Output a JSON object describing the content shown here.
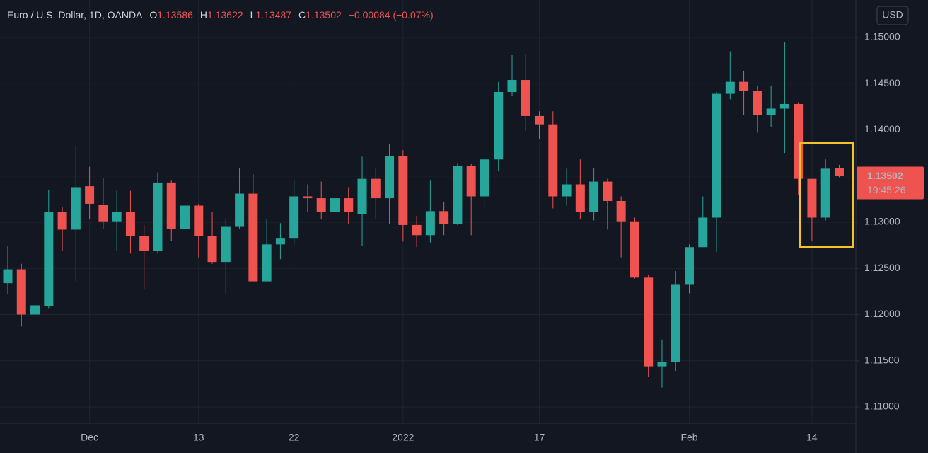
{
  "chart_data": {
    "type": "candlestick",
    "title": "Euro / U.S. Dollar, 1D, OANDA",
    "ohlc_labels": [
      "O",
      "H",
      "L",
      "C"
    ],
    "change_label": "−0.00084 (−0.07%)",
    "currency": "USD",
    "countdown": "19:45:26",
    "up_color": "#26a69a",
    "down_color": "#ef5350",
    "grid": true,
    "categories": [
      null,
      null,
      null,
      null,
      null,
      null,
      "Dec",
      null,
      null,
      null,
      null,
      null,
      null,
      null,
      "13",
      null,
      null,
      null,
      null,
      null,
      null,
      "22",
      null,
      null,
      null,
      null,
      null,
      null,
      null,
      "2022",
      null,
      null,
      null,
      null,
      null,
      null,
      null,
      null,
      null,
      "17",
      null,
      null,
      null,
      null,
      null,
      null,
      null,
      null,
      null,
      null,
      "Feb",
      null,
      null,
      null,
      null,
      null,
      null,
      null,
      null,
      "14",
      null,
      null
    ],
    "open": [
      1.1234,
      1.1249,
      1.12,
      1.1209,
      1.1311,
      1.1292,
      1.1339,
      1.1319,
      1.1301,
      1.1311,
      1.1285,
      1.1269,
      1.1343,
      1.1293,
      1.1318,
      1.1285,
      1.1257,
      1.1295,
      1.1331,
      1.1236,
      1.1276,
      1.1283,
      1.1328,
      1.1326,
      1.1311,
      1.1326,
      1.1309,
      1.1347,
      1.1326,
      1.1372,
      1.1297,
      1.1286,
      1.1312,
      1.1298,
      1.1361,
      1.1328,
      1.1368,
      1.1441,
      1.1454,
      1.1415,
      1.1406,
      1.1328,
      1.1341,
      1.1311,
      1.1344,
      1.1323,
      1.1301,
      1.124,
      1.1144,
      1.1149,
      1.1233,
      1.1273,
      1.1305,
      1.1439,
      1.1452,
      1.1442,
      1.1416,
      1.1423,
      1.1428,
      1.1347,
      1.1305,
      1.13586
    ],
    "high": [
      1.1274,
      1.1255,
      1.1212,
      1.1335,
      1.1316,
      1.1383,
      1.136,
      1.1348,
      1.1334,
      1.1334,
      1.1297,
      1.1354,
      1.1345,
      1.132,
      1.132,
      1.1311,
      1.1304,
      1.1359,
      1.1352,
      1.1303,
      1.1299,
      1.1345,
      1.1341,
      1.1344,
      1.1335,
      1.1338,
      1.1371,
      1.1358,
      1.1385,
      1.1378,
      1.1307,
      1.1345,
      1.1322,
      1.1364,
      1.1363,
      1.137,
      1.1452,
      1.1481,
      1.1482,
      1.142,
      1.142,
      1.1358,
      1.1368,
      1.1359,
      1.1347,
      1.1328,
      1.1305,
      1.1243,
      1.1173,
      1.1247,
      1.1276,
      1.1328,
      1.1441,
      1.1485,
      1.1464,
      1.1448,
      1.1448,
      1.1495,
      1.143,
      1.1347,
      1.1368,
      1.13622
    ],
    "low": [
      1.1222,
      1.1187,
      1.1198,
      1.1207,
      1.1269,
      1.1236,
      1.1303,
      1.1293,
      1.1269,
      1.1266,
      1.1228,
      1.1266,
      1.128,
      1.1266,
      1.1262,
      1.1255,
      1.1222,
      1.1293,
      1.1236,
      1.1235,
      1.126,
      1.1276,
      1.1311,
      1.1303,
      1.1307,
      1.1298,
      1.1274,
      1.1303,
      1.1298,
      1.1279,
      1.1273,
      1.1278,
      1.1286,
      1.1297,
      1.1286,
      1.1314,
      1.1355,
      1.1437,
      1.1399,
      1.139,
      1.1315,
      1.1318,
      1.1303,
      1.1302,
      1.1292,
      1.1262,
      1.1239,
      1.1133,
      1.1121,
      1.1139,
      1.1223,
      1.1273,
      1.1268,
      1.1433,
      1.1416,
      1.1397,
      1.1403,
      1.1375,
      1.133,
      1.128,
      1.1302,
      1.13487
    ],
    "close": [
      1.1249,
      1.12,
      1.121,
      1.1311,
      1.1292,
      1.1338,
      1.132,
      1.1301,
      1.1311,
      1.1285,
      1.1269,
      1.1343,
      1.1293,
      1.1318,
      1.1285,
      1.1257,
      1.1295,
      1.1331,
      1.1236,
      1.1276,
      1.1283,
      1.1328,
      1.1326,
      1.1311,
      1.1326,
      1.1311,
      1.1347,
      1.1326,
      1.1372,
      1.1297,
      1.1286,
      1.1312,
      1.1298,
      1.1361,
      1.1328,
      1.1368,
      1.1441,
      1.1454,
      1.1415,
      1.1406,
      1.1328,
      1.1341,
      1.1311,
      1.1344,
      1.1323,
      1.1301,
      1.124,
      1.1144,
      1.1149,
      1.1233,
      1.1273,
      1.1305,
      1.1439,
      1.1452,
      1.1442,
      1.1416,
      1.1423,
      1.1428,
      1.1347,
      1.1305,
      1.1358,
      1.13502
    ],
    "ylim": [
      1.10824,
      1.15406
    ],
    "yticks": [
      {
        "value": 1.11,
        "label": "1.11000"
      },
      {
        "value": 1.115,
        "label": "1.11500"
      },
      {
        "value": 1.12,
        "label": "1.12000"
      },
      {
        "value": 1.125,
        "label": "1.12500"
      },
      {
        "value": 1.13,
        "label": "1.13000"
      },
      {
        "value": 1.135,
        "label": "1.13500"
      },
      {
        "value": 1.14,
        "label": "1.14000"
      },
      {
        "value": 1.145,
        "label": "1.14500"
      },
      {
        "value": 1.15,
        "label": "1.15000"
      }
    ]
  }
}
